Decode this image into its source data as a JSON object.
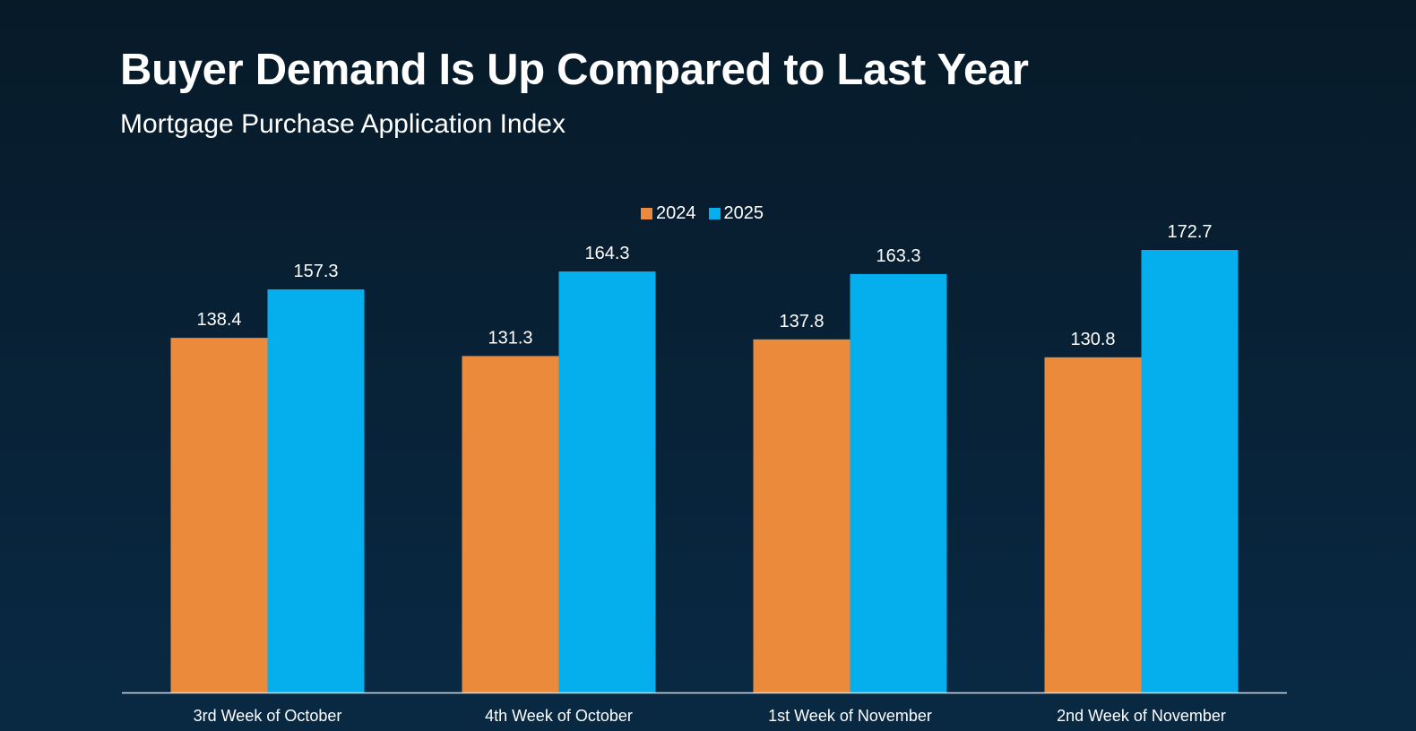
{
  "header": {
    "title": "Buyer Demand Is Up Compared to Last Year",
    "subtitle": "Mortgage Purchase Application Index"
  },
  "colors": {
    "series_2024": "#ea8a3a",
    "series_2025": "#05aeed",
    "axis": "#d9d9d9"
  },
  "chart_data": {
    "type": "bar",
    "title": "Buyer Demand Is Up Compared to Last Year",
    "subtitle": "Mortgage Purchase Application Index",
    "xlabel": "",
    "ylabel": "",
    "ylim": [
      0,
      172.7
    ],
    "grid": false,
    "legend_position": "top-center",
    "categories": [
      "3rd Week of October",
      "4th Week of October",
      "1st Week of November",
      "2nd Week of November"
    ],
    "series": [
      {
        "name": "2024",
        "color": "#ea8a3a",
        "values": [
          138.4,
          131.3,
          137.8,
          130.8
        ],
        "labels": [
          "138.4",
          "131.3",
          "137.8",
          "130.8"
        ]
      },
      {
        "name": "2025",
        "color": "#05aeed",
        "values": [
          157.3,
          164.3,
          163.3,
          172.7
        ],
        "labels": [
          "157.3",
          "164.3",
          "163.3",
          "172.7"
        ]
      }
    ]
  }
}
